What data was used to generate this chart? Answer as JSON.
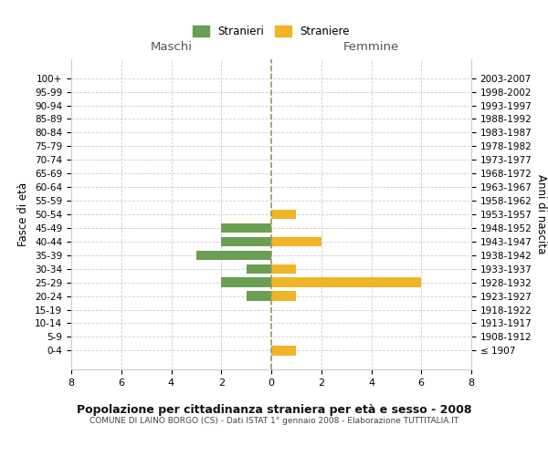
{
  "age_groups": [
    "100+",
    "95-99",
    "90-94",
    "85-89",
    "80-84",
    "75-79",
    "70-74",
    "65-69",
    "60-64",
    "55-59",
    "50-54",
    "45-49",
    "40-44",
    "35-39",
    "30-34",
    "25-29",
    "20-24",
    "15-19",
    "10-14",
    "5-9",
    "0-4"
  ],
  "birth_years": [
    "≤ 1907",
    "1908-1912",
    "1913-1917",
    "1918-1922",
    "1923-1927",
    "1928-1932",
    "1933-1937",
    "1938-1942",
    "1943-1947",
    "1948-1952",
    "1953-1957",
    "1958-1962",
    "1963-1967",
    "1968-1972",
    "1973-1977",
    "1978-1982",
    "1983-1987",
    "1988-1992",
    "1993-1997",
    "1998-2002",
    "2003-2007"
  ],
  "males": [
    0,
    0,
    0,
    0,
    0,
    0,
    0,
    0,
    0,
    0,
    0,
    2,
    2,
    3,
    1,
    2,
    1,
    0,
    0,
    0,
    0
  ],
  "females": [
    0,
    0,
    0,
    0,
    0,
    0,
    0,
    0,
    0,
    0,
    1,
    0,
    2,
    0,
    1,
    6,
    1,
    0,
    0,
    0,
    1
  ],
  "color_male": "#6a9e52",
  "color_female": "#f0b429",
  "title": "Popolazione per cittadinanza straniera per età e sesso - 2008",
  "subtitle": "COMUNE DI LAINO BORGO (CS) - Dati ISTAT 1° gennaio 2008 - Elaborazione TUTTITALIA.IT",
  "xlabel_left": "Maschi",
  "xlabel_right": "Femmine",
  "ylabel_left": "Fasce di età",
  "ylabel_right": "Anni di nascita",
  "legend_male": "Stranieri",
  "legend_female": "Straniere",
  "xlim": 8,
  "background_color": "#ffffff",
  "grid_color": "#cccccc"
}
